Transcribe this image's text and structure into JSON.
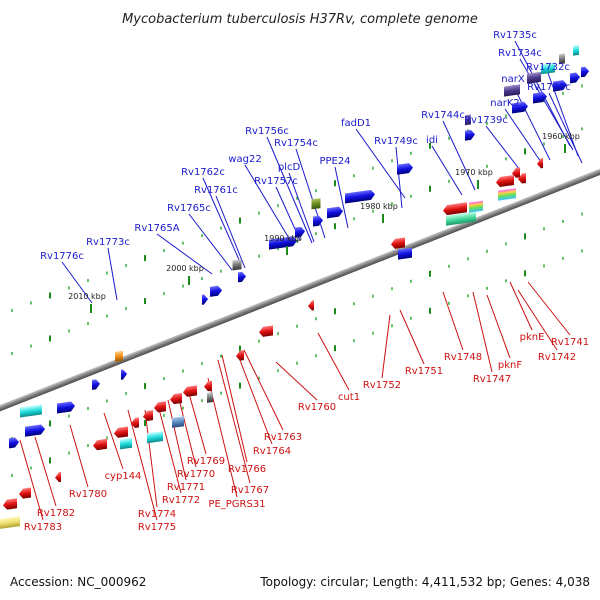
{
  "title": "Mycobacterium tuberculosis H37Rv, complete genome",
  "footer": {
    "accession": "Accession: NC_000962",
    "summary": "Topology: circular; Length: 4,411,532 bp; Genes: 4,038"
  },
  "colors": {
    "forward": "#1010e0",
    "reverse": "#e01010",
    "axis": "#888888",
    "tick": "#22aa22"
  },
  "kbp_marks": [
    {
      "label": "1960 kbp"
    },
    {
      "label": "1970 kbp"
    },
    {
      "label": "1980 kbp"
    },
    {
      "label": "1990 kbp"
    },
    {
      "label": "2000 kbp"
    },
    {
      "label": "2010 kbp"
    }
  ],
  "blue_labels": [
    {
      "label": "Rv1735c"
    },
    {
      "label": "Rv1734c"
    },
    {
      "label": "Rv1732c"
    },
    {
      "label": "narX"
    },
    {
      "label": "Rv1733c"
    },
    {
      "label": "narK2"
    },
    {
      "label": "Rv1739c"
    },
    {
      "label": "Rv1744c"
    },
    {
      "label": "idi"
    },
    {
      "label": "fadD1"
    },
    {
      "label": "Rv1749c"
    },
    {
      "label": "Rv1756c"
    },
    {
      "label": "Rv1754c"
    },
    {
      "label": "plcD"
    },
    {
      "label": "PPE24"
    },
    {
      "label": "wag22"
    },
    {
      "label": "Rv1757c"
    },
    {
      "label": "Rv1762c"
    },
    {
      "label": "Rv1761c"
    },
    {
      "label": "Rv1765c"
    },
    {
      "label": "Rv1765A"
    },
    {
      "label": "Rv1773c"
    },
    {
      "label": "Rv1776c"
    }
  ],
  "red_labels": [
    {
      "label": "Rv1741"
    },
    {
      "label": "Rv1742"
    },
    {
      "label": "pknE"
    },
    {
      "label": "pknF"
    },
    {
      "label": "Rv1748"
    },
    {
      "label": "Rv1747"
    },
    {
      "label": "Rv1751"
    },
    {
      "label": "Rv1752"
    },
    {
      "label": "cut1"
    },
    {
      "label": "Rv1760"
    },
    {
      "label": "Rv1763"
    },
    {
      "label": "Rv1764"
    },
    {
      "label": "Rv1766"
    },
    {
      "label": "Rv1767"
    },
    {
      "label": "PE_PGRS31"
    },
    {
      "label": "Rv1769"
    },
    {
      "label": "Rv1770"
    },
    {
      "label": "Rv1771"
    },
    {
      "label": "Rv1772"
    },
    {
      "label": "Rv1774"
    },
    {
      "label": "Rv1775"
    },
    {
      "label": "cyp144"
    },
    {
      "label": "Rv1780"
    },
    {
      "label": "Rv1782"
    },
    {
      "label": "Rv1783"
    }
  ]
}
